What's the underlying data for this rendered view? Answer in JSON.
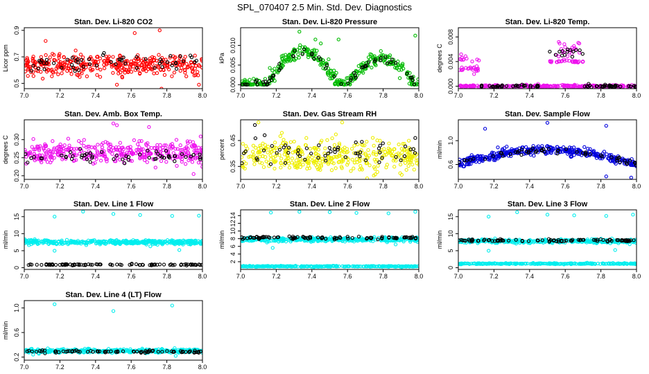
{
  "page": {
    "title": "SPL_070407  2.5 Min. Std. Dev. Diagnostics"
  },
  "chart_data": [
    {
      "type": "scatter",
      "title": "Stan. Dev. Li-820 CO2",
      "xlabel": "",
      "ylabel": "Licor ppm",
      "xlim": [
        7.0,
        8.0
      ],
      "ylim": [
        0.46,
        0.92
      ],
      "x_ticks": [
        "7.0",
        "7.2",
        "7.4",
        "7.6",
        "7.8",
        "8.0"
      ],
      "y_ticks": [
        "0.5",
        "0.7",
        "0.9"
      ],
      "y_tick_values": [
        0.5,
        0.7,
        0.9
      ],
      "series": [
        {
          "color": "#ff0000",
          "pattern": "noise",
          "base": 0.64,
          "noise": 0.07,
          "n": 380,
          "outliers": [
            [
              7.12,
              0.82
            ],
            [
              7.62,
              0.88
            ],
            [
              7.76,
              0.9
            ],
            [
              7.52,
              0.49
            ],
            [
              7.77,
              0.46
            ],
            [
              7.98,
              0.49
            ]
          ]
        },
        {
          "color": "#000000",
          "pattern": "noise",
          "base": 0.66,
          "noise": 0.05,
          "n": 55
        }
      ]
    },
    {
      "type": "scatter",
      "title": "Stan. Dev. Li-820 Pressure",
      "xlabel": "",
      "ylabel": "kPa",
      "xlim": [
        7.0,
        8.0
      ],
      "ylim": [
        -0.001,
        0.0145
      ],
      "x_ticks": [
        "7.0",
        "7.2",
        "7.4",
        "7.6",
        "7.8",
        "8.0"
      ],
      "y_ticks": [
        "0.000",
        "0.005",
        "0.010"
      ],
      "y_tick_values": [
        0.0,
        0.005,
        0.01
      ],
      "series": [
        {
          "color": "#00bb00",
          "pattern": "arch",
          "arches": [
            [
              7.15,
              7.55,
              0.0085
            ],
            [
              7.6,
              7.98,
              0.0068
            ]
          ],
          "noise": 0.0015,
          "n": 360,
          "outliers": [
            [
              7.33,
              0.0135
            ],
            [
              7.55,
              0.0115
            ],
            [
              7.98,
              0.0125
            ],
            [
              7.42,
              0.0115
            ],
            [
              7.45,
              0.0105
            ]
          ]
        },
        {
          "color": "#000000",
          "pattern": "arch",
          "arches": [
            [
              7.15,
              7.55,
              0.0082
            ],
            [
              7.6,
              7.98,
              0.0065
            ]
          ],
          "noise": 0.0008,
          "n": 60
        }
      ]
    },
    {
      "type": "scatter",
      "title": "Stan. Dev. Li-820 Temp.",
      "xlabel": "",
      "ylabel": "degrees C",
      "xlim": [
        7.0,
        8.0
      ],
      "ylim": [
        -0.0004,
        0.0095
      ],
      "x_ticks": [
        "7.0",
        "7.2",
        "7.4",
        "7.6",
        "7.8",
        "8.0"
      ],
      "y_ticks": [
        "0.000",
        "0.004",
        "0.008"
      ],
      "y_tick_values": [
        0.0,
        0.004,
        0.008
      ],
      "series": [
        {
          "color": "#ee11ee",
          "pattern": "levels",
          "levels": [
            [
              7.0,
              8.0,
              0.0
            ]
          ],
          "jitter": 0.0001,
          "n": 280,
          "extra": [
            [
              7.0,
              7.12,
              0.0028,
              0.0006,
              20
            ],
            [
              7.0,
              7.12,
              0.0043,
              0.0006,
              12
            ],
            [
              7.5,
              7.7,
              0.004,
              0.0002,
              30
            ],
            [
              7.55,
              7.68,
              0.006,
              0.0012,
              22
            ]
          ]
        },
        {
          "color": "#000000",
          "pattern": "levels",
          "levels": [
            [
              7.12,
              7.45,
              0.0
            ],
            [
              7.7,
              8.0,
              0.0
            ]
          ],
          "jitter": 0.0001,
          "n": 70,
          "extra": [
            [
              7.5,
              7.7,
              0.0052,
              0.0012,
              14
            ]
          ]
        }
      ]
    },
    {
      "type": "scatter",
      "title": "Stan. Dev. Amb. Box Temp.",
      "xlabel": "",
      "ylabel": "degrees C",
      "xlim": [
        7.0,
        8.0
      ],
      "ylim": [
        0.19,
        0.355
      ],
      "x_ticks": [
        "7.0",
        "7.2",
        "7.4",
        "7.6",
        "7.8",
        "8.0"
      ],
      "y_ticks": [
        "0.20",
        "0.25",
        "0.30"
      ],
      "y_tick_values": [
        0.2,
        0.25,
        0.3
      ],
      "series": [
        {
          "color": "#ee11ee",
          "pattern": "noise",
          "base": 0.265,
          "noise": 0.025,
          "n": 380,
          "outliers": [
            [
              7.5,
              0.345
            ],
            [
              7.52,
              0.34
            ],
            [
              7.7,
              0.335
            ],
            [
              7.95,
              0.205
            ]
          ]
        },
        {
          "color": "#000000",
          "pattern": "noise",
          "base": 0.255,
          "noise": 0.015,
          "n": 55
        }
      ]
    },
    {
      "type": "scatter",
      "title": "Stan. Dev. Gas Stream RH",
      "xlabel": "",
      "ylabel": "percent",
      "xlim": [
        7.0,
        8.0
      ],
      "ylim": [
        0.3,
        0.53
      ],
      "x_ticks": [
        "7.0",
        "7.2",
        "7.4",
        "7.6",
        "7.8",
        "8.0"
      ],
      "y_ticks": [
        "0.35",
        "0.45"
      ],
      "y_tick_values": [
        0.35,
        0.45
      ],
      "series": [
        {
          "color": "#eeee00",
          "pattern": "noise",
          "base": 0.39,
          "noise": 0.05,
          "n": 380,
          "outliers": [
            [
              7.1,
              0.52
            ],
            [
              7.57,
              0.52
            ]
          ]
        },
        {
          "color": "#000000",
          "pattern": "noise",
          "base": 0.4,
          "noise": 0.04,
          "n": 55,
          "outliers": [
            [
              7.08,
              0.51
            ],
            [
              7.98,
              0.46
            ]
          ]
        }
      ]
    },
    {
      "type": "scatter",
      "title": "Stan. Dev. Sample Flow",
      "xlabel": "",
      "ylabel": "ml/min",
      "xlim": [
        7.0,
        8.0
      ],
      "ylim": [
        0.35,
        1.35
      ],
      "x_ticks": [
        "7.0",
        "7.2",
        "7.4",
        "7.6",
        "7.8",
        "8.0"
      ],
      "y_ticks": [
        "0.6",
        "1.0"
      ],
      "y_tick_values": [
        0.6,
        1.0
      ],
      "series": [
        {
          "color": "#0000dd",
          "pattern": "arch",
          "arches": [
            [
              7.0,
              8.0,
              0.25
            ]
          ],
          "arch_base": 0.6,
          "noise": 0.06,
          "n": 380,
          "outliers": [
            [
              7.15,
              1.2
            ],
            [
              7.5,
              1.3
            ],
            [
              7.83,
              1.25
            ],
            [
              7.83,
              0.4
            ],
            [
              7.97,
              0.38
            ]
          ]
        },
        {
          "color": "#000000",
          "pattern": "arch",
          "arches": [
            [
              7.0,
              8.0,
              0.22
            ]
          ],
          "arch_base": 0.62,
          "noise": 0.04,
          "n": 55
        }
      ]
    },
    {
      "type": "scatter",
      "title": "Stan. Dev. Line 1 Flow",
      "xlabel": "",
      "ylabel": "ml/min",
      "xlim": [
        7.0,
        8.0
      ],
      "ylim": [
        -0.5,
        17.0
      ],
      "x_ticks": [
        "7.0",
        "7.2",
        "7.4",
        "7.6",
        "7.8",
        "8.0"
      ],
      "y_ticks": [
        "0",
        "5",
        "10",
        "15"
      ],
      "y_tick_values": [
        0,
        5,
        10,
        15
      ],
      "series": [
        {
          "color": "#00eeee",
          "pattern": "noise",
          "base": 7.5,
          "noise": 0.55,
          "n": 400,
          "outliers": [
            [
              7.17,
              15.0
            ],
            [
              7.33,
              16.5
            ],
            [
              7.5,
              15.8
            ],
            [
              7.65,
              15.5
            ],
            [
              7.83,
              15.2
            ],
            [
              7.98,
              15.3
            ],
            [
              7.17,
              5.0
            ],
            [
              7.87,
              5.2
            ]
          ]
        },
        {
          "color": "#000000",
          "pattern": "noise",
          "base": 0.9,
          "noise": 0.15,
          "n": 90
        }
      ]
    },
    {
      "type": "scatter",
      "title": "Stan. Dev. Line 2 Flow",
      "xlabel": "",
      "ylabel": "ml/min",
      "xlim": [
        7.0,
        8.0
      ],
      "ylim": [
        0.0,
        15.5
      ],
      "x_ticks": [
        "7.0",
        "7.2",
        "7.4",
        "7.6",
        "7.8",
        "8.0"
      ],
      "y_ticks": [
        "2",
        "4",
        "6",
        "8",
        "10",
        "12",
        "14"
      ],
      "y_tick_values": [
        2,
        4,
        6,
        8,
        10,
        12,
        14
      ],
      "series": [
        {
          "color": "#00eeee",
          "pattern": "noise",
          "base": 7.8,
          "noise": 0.45,
          "n": 380,
          "outliers": [
            [
              7.17,
              14.8
            ],
            [
              7.33,
              15.0
            ],
            [
              7.5,
              14.9
            ],
            [
              7.65,
              14.7
            ],
            [
              7.83,
              14.6
            ],
            [
              7.98,
              15.0
            ],
            [
              7.18,
              5.6
            ],
            [
              7.87,
              6.5
            ]
          ]
        },
        {
          "color": "#00eeee",
          "pattern": "noise",
          "base": 0.8,
          "noise": 0.1,
          "n": 300
        },
        {
          "color": "#000000",
          "pattern": "noise",
          "base": 8.2,
          "noise": 0.3,
          "n": 90
        }
      ]
    },
    {
      "type": "scatter",
      "title": "Stan. Dev. Line 3 Flow",
      "xlabel": "",
      "ylabel": "ml/min",
      "xlim": [
        7.0,
        8.0
      ],
      "ylim": [
        -0.5,
        17.0
      ],
      "x_ticks": [
        "7.0",
        "7.2",
        "7.4",
        "7.6",
        "7.8",
        "8.0"
      ],
      "y_ticks": [
        "0",
        "5",
        "10",
        "15"
      ],
      "y_tick_values": [
        0,
        5,
        10,
        15
      ],
      "series": [
        {
          "color": "#00eeee",
          "pattern": "noise",
          "base": 7.8,
          "noise": 0.45,
          "n": 380,
          "outliers": [
            [
              7.17,
              15.0
            ],
            [
              7.33,
              16.3
            ],
            [
              7.5,
              15.6
            ],
            [
              7.65,
              15.4
            ],
            [
              7.83,
              15.2
            ],
            [
              7.98,
              15.6
            ],
            [
              7.17,
              5.0
            ],
            [
              7.88,
              5.2
            ]
          ]
        },
        {
          "color": "#00eeee",
          "pattern": "noise",
          "base": 1.2,
          "noise": 0.12,
          "n": 300
        },
        {
          "color": "#000000",
          "pattern": "noise",
          "base": 8.0,
          "noise": 0.25,
          "n": 90
        }
      ]
    },
    {
      "type": "scatter",
      "title": "Stan. Dev. Line 4 (LT) Flow",
      "xlabel": "",
      "ylabel": "ml/min",
      "xlim": [
        7.0,
        8.0
      ],
      "ylim": [
        0.15,
        1.12
      ],
      "x_ticks": [
        "7.0",
        "7.2",
        "7.4",
        "7.6",
        "7.8",
        "8.0"
      ],
      "y_ticks": [
        "0.2",
        "0.6",
        "1.0"
      ],
      "y_tick_values": [
        0.2,
        0.6,
        1.0
      ],
      "series": [
        {
          "color": "#00eeee",
          "pattern": "noise",
          "base": 0.3,
          "noise": 0.025,
          "n": 380,
          "outliers": [
            [
              7.17,
              1.06
            ],
            [
              7.5,
              0.95
            ],
            [
              7.83,
              1.04
            ],
            [
              7.85,
              0.22
            ],
            [
              7.05,
              0.24
            ]
          ]
        },
        {
          "color": "#000000",
          "pattern": "noise",
          "base": 0.29,
          "noise": 0.015,
          "n": 80
        }
      ]
    }
  ]
}
